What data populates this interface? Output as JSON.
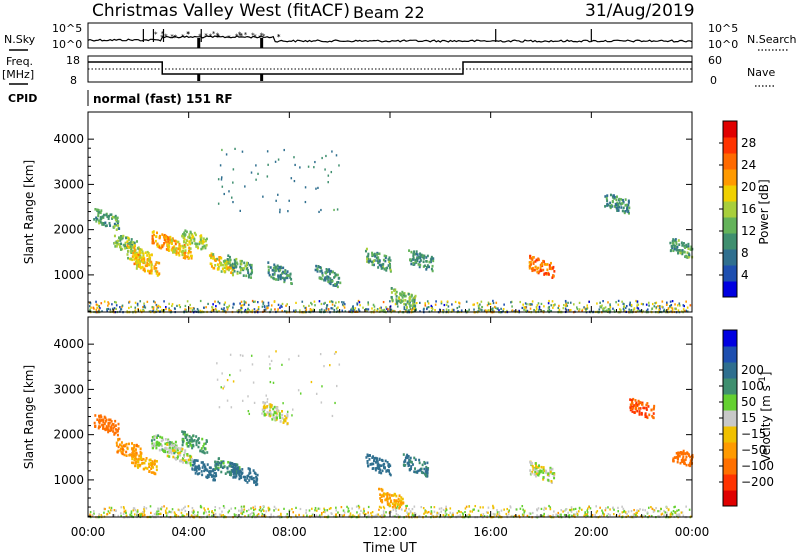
{
  "header": {
    "station": "Christmas Valley West (fitACF)",
    "beam": "Beam 22",
    "date": "31/Aug/2019"
  },
  "top_panels": {
    "nsky_label": "N.Sky",
    "nsearch_label": "N.Search",
    "noise_tick_top": "10^5",
    "noise_tick_bottom": "10^0",
    "freq_label_1": "Freq.",
    "freq_label_2": "[MHz]",
    "freq_ticks": [
      "18",
      "8"
    ],
    "nave_label": "Nave",
    "nave_ticks": [
      "60",
      "0"
    ],
    "cpid_label": "CPID",
    "cpid_text": "normal (fast) 151 RF"
  },
  "chart_data": [
    {
      "type": "heatmap",
      "title": "",
      "xlabel": "",
      "ylabel": "Slant Range [km]",
      "x_range_hours": [
        0,
        24
      ],
      "ylim": [
        180,
        4600
      ],
      "yticks": [
        1000,
        2000,
        3000,
        4000
      ],
      "colorbar": {
        "label": "Power [dB]",
        "min": 0,
        "max": 32,
        "ticks": [
          4,
          8,
          12,
          16,
          20,
          24,
          28
        ],
        "colors": [
          "#0000e0",
          "#1e4fb0",
          "#2f6f8f",
          "#3f8f6f",
          "#64b35a",
          "#a8cf3c",
          "#f0d000",
          "#ff9a00",
          "#ff6a00",
          "#ff3300",
          "#e00000"
        ]
      },
      "regions": [
        {
          "t": 0.7,
          "r": 2250,
          "v": 12
        },
        {
          "t": 1.5,
          "r": 1700,
          "v": 14
        },
        {
          "t": 2.0,
          "r": 1450,
          "v": 18
        },
        {
          "t": 2.3,
          "r": 1250,
          "v": 20
        },
        {
          "t": 3.0,
          "r": 1750,
          "v": 22
        },
        {
          "t": 3.6,
          "r": 1600,
          "v": 20
        },
        {
          "t": 4.2,
          "r": 1800,
          "v": 16
        },
        {
          "t": 5.3,
          "r": 1250,
          "v": 18
        },
        {
          "t": 6.0,
          "r": 1200,
          "v": 12
        },
        {
          "t": 7.6,
          "r": 1050,
          "v": 10
        },
        {
          "t": 9.5,
          "r": 1000,
          "v": 10
        },
        {
          "t": 11.5,
          "r": 1350,
          "v": 12
        },
        {
          "t": 13.2,
          "r": 1350,
          "v": 10
        },
        {
          "t": 12.5,
          "r": 500,
          "v": 14
        },
        {
          "t": 18.0,
          "r": 1200,
          "v": 24
        },
        {
          "t": 21.0,
          "r": 2600,
          "v": 10
        },
        {
          "t": 23.6,
          "r": 1600,
          "v": 12
        }
      ]
    },
    {
      "type": "heatmap",
      "title": "",
      "xlabel": "Time UT",
      "ylabel": "Slant Range [km]",
      "x_range_hours": [
        0,
        24
      ],
      "xticks": [
        "00:00",
        "04:00",
        "08:00",
        "12:00",
        "16:00",
        "20:00",
        "00:00"
      ],
      "ylim": [
        180,
        4600
      ],
      "yticks": [
        1000,
        2000,
        3000,
        4000
      ],
      "colorbar": {
        "label": "Velocity [m s^-1]",
        "ticks": [
          -200,
          -100,
          -50,
          -15,
          15,
          50,
          100,
          200
        ],
        "colors": [
          "#e00000",
          "#ff3300",
          "#ff7000",
          "#ff9a00",
          "#f0c000",
          "#c8c8c8",
          "#64d030",
          "#3f8f6f",
          "#2f6f8f",
          "#1e4fb0",
          "#0000e0"
        ]
      },
      "regions": [
        {
          "t": 0.7,
          "r": 2250,
          "v": -150
        },
        {
          "t": 1.6,
          "r": 1700,
          "v": -80
        },
        {
          "t": 2.2,
          "r": 1400,
          "v": -60
        },
        {
          "t": 3.0,
          "r": 1800,
          "v": 30
        },
        {
          "t": 3.6,
          "r": 1600,
          "v": 0
        },
        {
          "t": 4.2,
          "r": 1850,
          "v": 60
        },
        {
          "t": 4.6,
          "r": 1250,
          "v": 150
        },
        {
          "t": 5.5,
          "r": 1300,
          "v": 80
        },
        {
          "t": 6.2,
          "r": 1150,
          "v": 150
        },
        {
          "t": 7.4,
          "r": 2500,
          "v": 0
        },
        {
          "t": 11.5,
          "r": 1350,
          "v": 150
        },
        {
          "t": 13.0,
          "r": 1350,
          "v": 120
        },
        {
          "t": 12.0,
          "r": 600,
          "v": -60
        },
        {
          "t": 18.0,
          "r": 1200,
          "v": 0
        },
        {
          "t": 22.0,
          "r": 2600,
          "v": -200
        },
        {
          "t": 23.7,
          "r": 1500,
          "v": -150
        }
      ]
    }
  ]
}
